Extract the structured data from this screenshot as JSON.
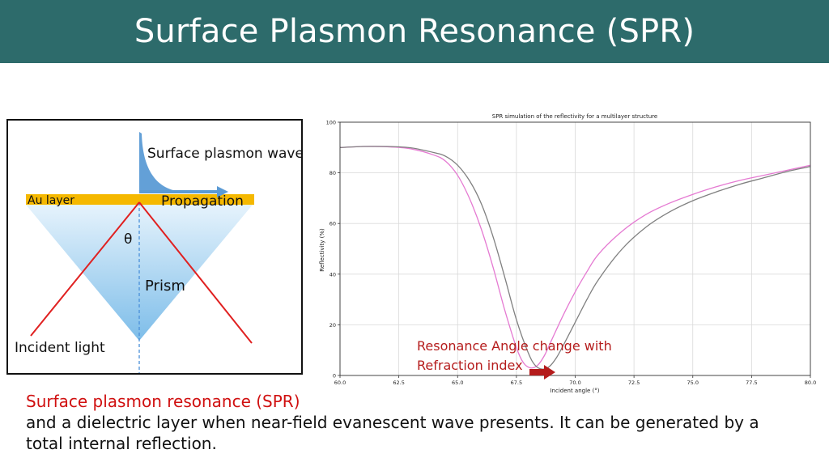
{
  "slide": {
    "title": "Surface Plasmon Resonance (SPR)"
  },
  "diagram": {
    "surface_plasmon_wave": "Surface plasmon wave",
    "au_layer": "Au layer",
    "propagation": "Propagation",
    "theta": "θ",
    "prism": "Prism",
    "incident_light": "Incident light",
    "colors": {
      "gold": "#f5b800",
      "arrow": "#5b9bd5",
      "light": "#e02020",
      "prism": "#8cc6ee"
    }
  },
  "chart_data": {
    "type": "line",
    "title": "SPR simulation of the reflectivity for a multilayer structure",
    "xlabel": "Incident angle (°)",
    "ylabel": "Reflectivity (%)",
    "xlim": [
      60,
      80
    ],
    "ylim": [
      0,
      100
    ],
    "xticks": [
      "60.0",
      "62.5",
      "65.0",
      "67.5",
      "70.0",
      "72.5",
      "75.0",
      "77.5",
      "80.0"
    ],
    "yticks": [
      "0",
      "20",
      "40",
      "60",
      "80",
      "100"
    ],
    "grid": true,
    "series": [
      {
        "color": "#e57ad2",
        "x": [
          60,
          61,
          62,
          63,
          64,
          64.5,
          65,
          65.5,
          66,
          66.5,
          67,
          67.5,
          67.8,
          68.1,
          68.4,
          68.7,
          69,
          69.5,
          70,
          70.5,
          71,
          72,
          73,
          74,
          75,
          76,
          77,
          78,
          79,
          80
        ],
        "y": [
          90,
          90.4,
          90.3,
          89.5,
          87,
          84.5,
          79,
          70,
          58,
          43,
          26,
          11,
          5,
          3,
          4,
          8,
          14,
          24,
          33,
          41,
          48,
          57,
          63.5,
          68,
          71.5,
          74.5,
          77,
          79,
          81,
          83
        ]
      },
      {
        "color": "#808080",
        "x": [
          60,
          61,
          62,
          63,
          64,
          64.5,
          65,
          65.5,
          66,
          66.5,
          67,
          67.5,
          68,
          68.3,
          68.6,
          68.9,
          69.2,
          69.5,
          70,
          70.5,
          71,
          72,
          73,
          74,
          75,
          76,
          77,
          78,
          79,
          80
        ],
        "y": [
          90,
          90.4,
          90.4,
          89.9,
          88,
          86.5,
          83,
          77,
          68,
          55,
          39,
          22,
          9,
          4,
          2.5,
          3.5,
          7,
          12,
          21,
          30,
          38,
          50,
          58.5,
          64.5,
          69,
          72.5,
          75.5,
          78,
          80.5,
          82.5
        ]
      }
    ]
  },
  "annotation": {
    "line1": "Resonance Angle change with",
    "line2": "Refraction index",
    "color": "#b51c1c"
  },
  "caption": {
    "highlight": "Surface plasmon resonance (SPR)",
    "text_line2": "and a dielectric layer when near-field evanescent wave presents. It can be generated by a",
    "text_line3": "total internal reflection."
  }
}
